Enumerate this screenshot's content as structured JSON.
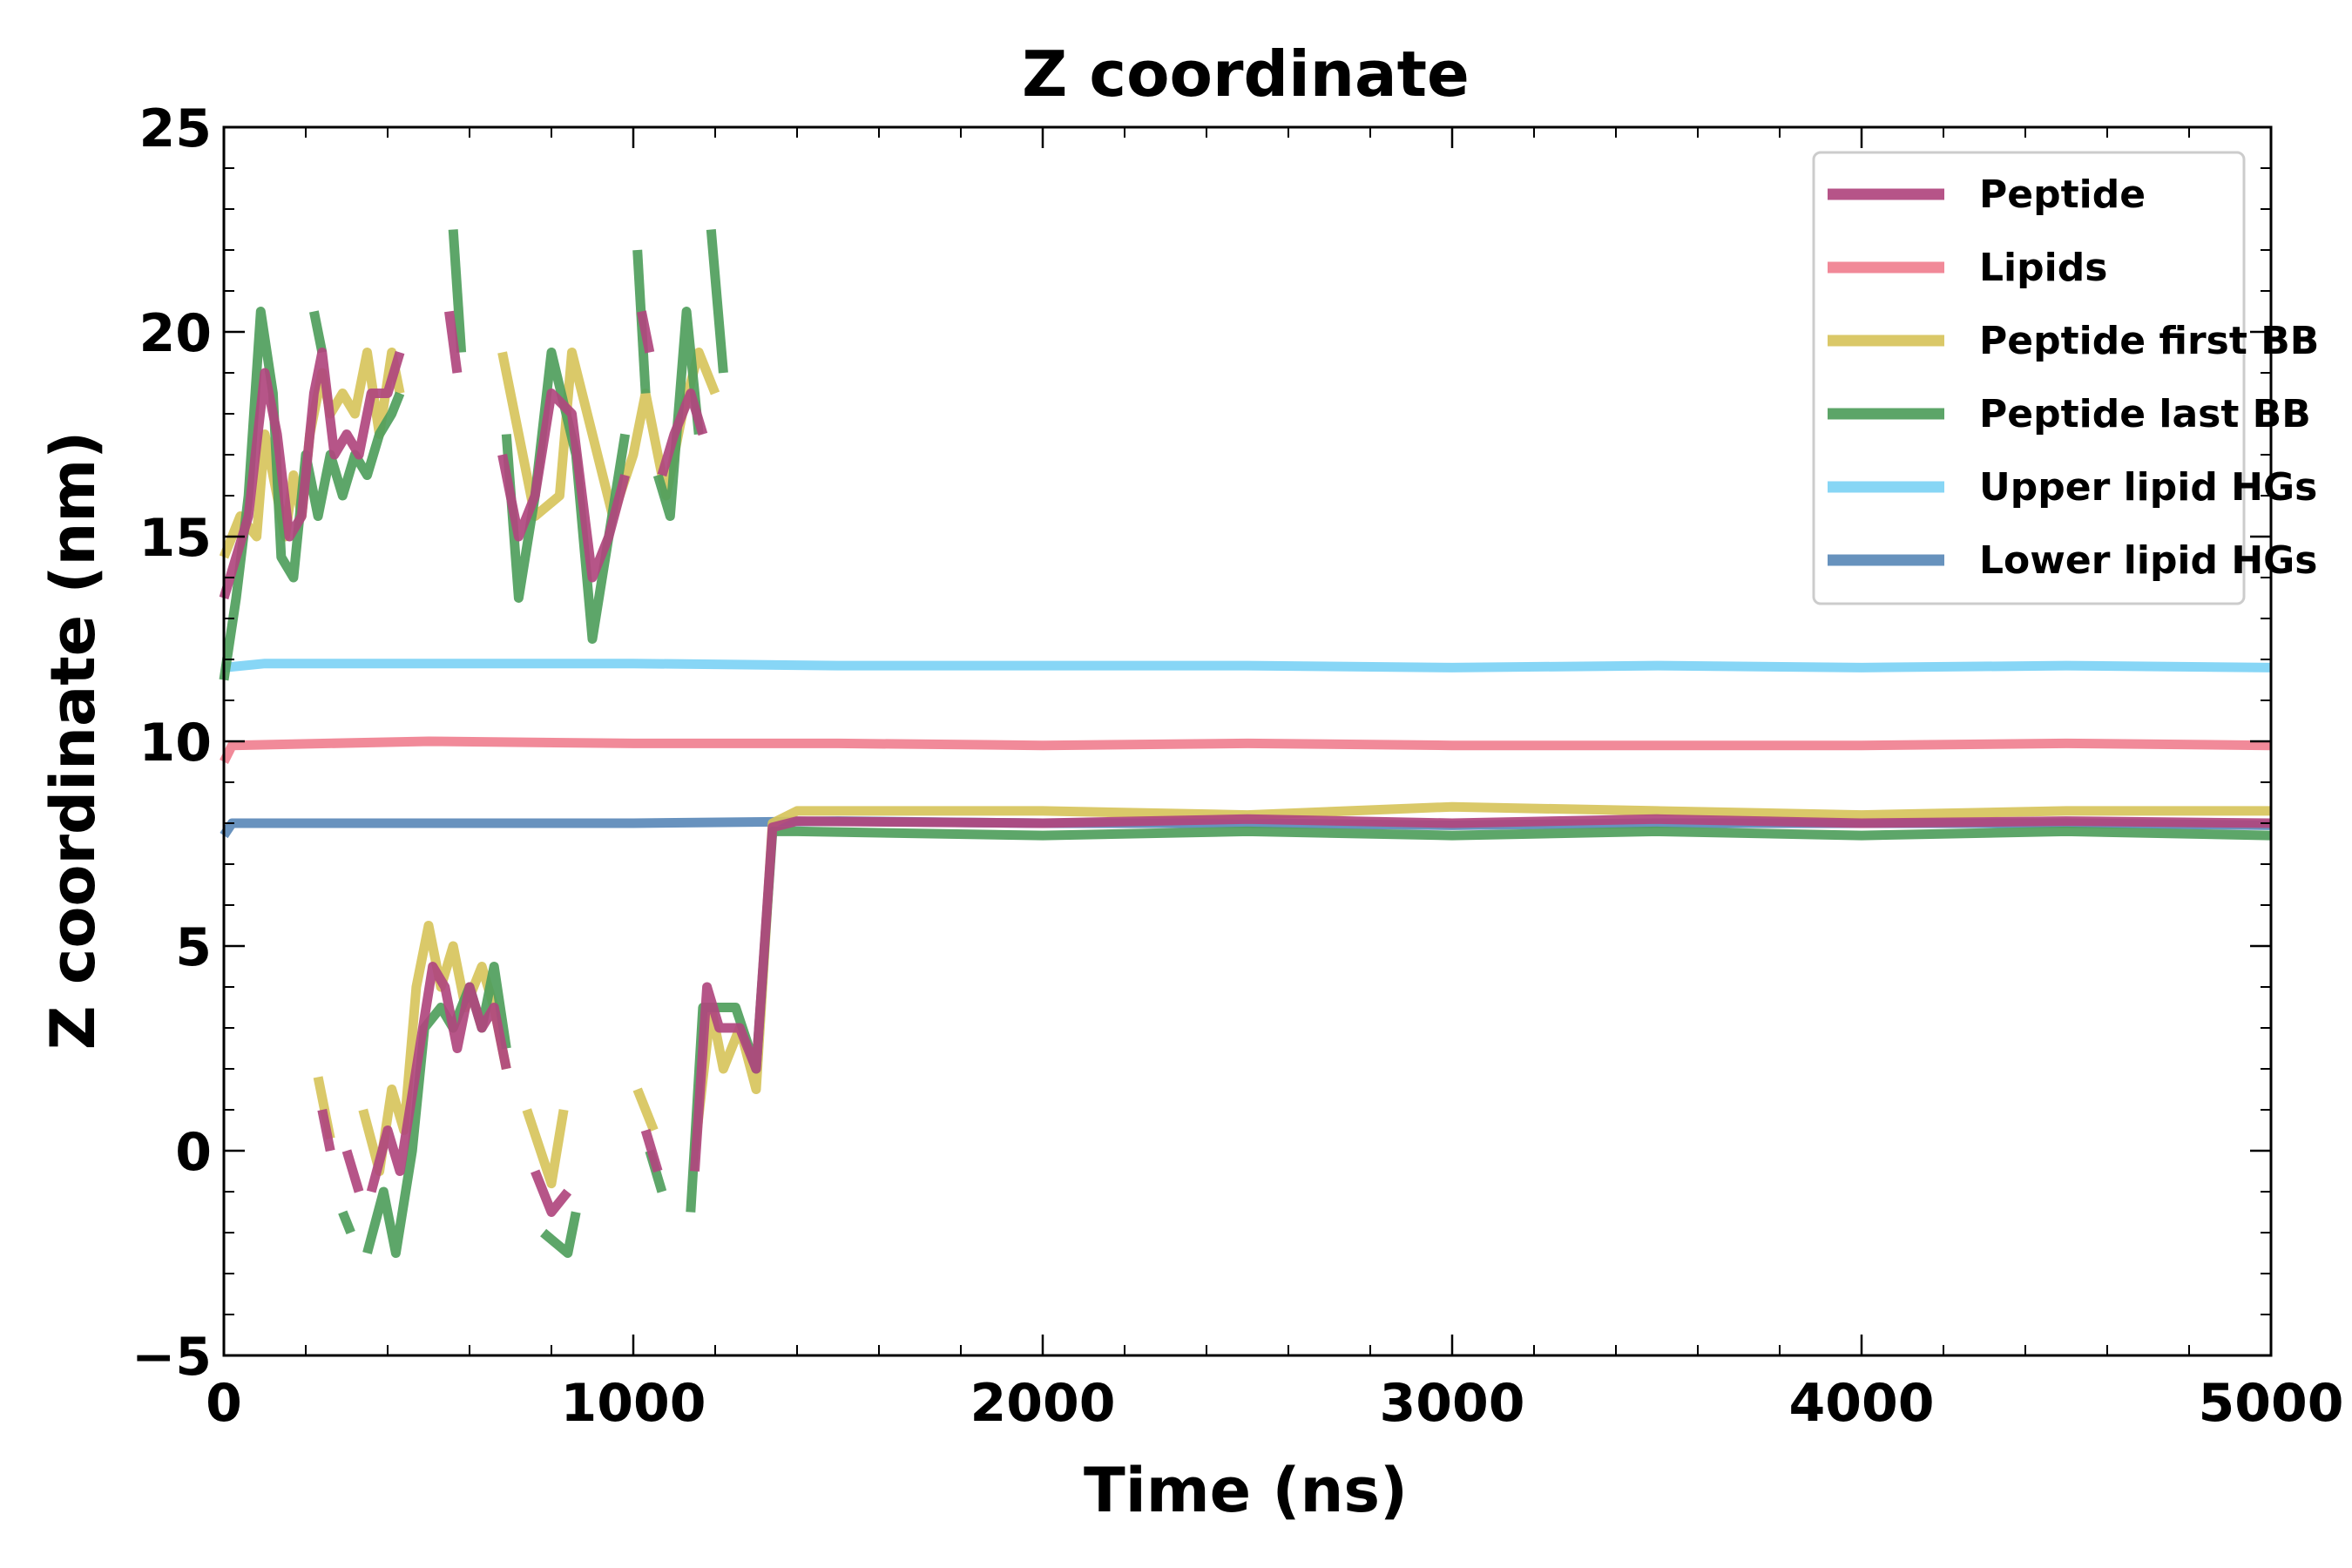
{
  "chart_data": {
    "type": "line",
    "title": "Z coordinate",
    "xlabel": "Time (ns)",
    "ylabel": "Z coordinate (nm)",
    "xlim": [
      0,
      5000
    ],
    "ylim": [
      -5,
      25
    ],
    "x_ticks": [
      "0",
      "1000",
      "2000",
      "3000",
      "4000",
      "5000"
    ],
    "y_ticks": [
      "−5",
      "0",
      "5",
      "10",
      "15",
      "20",
      "25"
    ],
    "grid": false,
    "legend_position": "top-right",
    "series": [
      {
        "name": "Upper lipid HGs",
        "color": "#7dd3f5",
        "segments": [
          [
            [
              0,
              11.8
            ],
            [
              100,
              11.9
            ],
            [
              500,
              11.9
            ],
            [
              1000,
              11.9
            ],
            [
              1500,
              11.85
            ],
            [
              2000,
              11.85
            ],
            [
              2500,
              11.85
            ],
            [
              3000,
              11.8
            ],
            [
              3500,
              11.85
            ],
            [
              4000,
              11.8
            ],
            [
              4500,
              11.85
            ],
            [
              5000,
              11.8
            ]
          ]
        ]
      },
      {
        "name": "Lipids",
        "color": "#f08090",
        "segments": [
          [
            [
              0,
              9.5
            ],
            [
              20,
              9.9
            ],
            [
              500,
              10.0
            ],
            [
              1000,
              9.95
            ],
            [
              1500,
              9.95
            ],
            [
              2000,
              9.9
            ],
            [
              2500,
              9.95
            ],
            [
              3000,
              9.9
            ],
            [
              3500,
              9.9
            ],
            [
              4000,
              9.9
            ],
            [
              4500,
              9.95
            ],
            [
              5000,
              9.9
            ]
          ]
        ]
      },
      {
        "name": "Lower lipid HGs",
        "color": "#5b89b8",
        "segments": [
          [
            [
              0,
              7.7
            ],
            [
              20,
              8.0
            ],
            [
              500,
              8.0
            ],
            [
              1000,
              8.0
            ],
            [
              1500,
              8.05
            ],
            [
              2000,
              8.0
            ],
            [
              2500,
              8.0
            ],
            [
              3000,
              7.95
            ],
            [
              3500,
              8.0
            ],
            [
              4000,
              8.0
            ],
            [
              4500,
              8.0
            ],
            [
              5000,
              7.95
            ]
          ]
        ]
      },
      {
        "name": "Peptide first BB",
        "color": "#d7c45c",
        "segments": [
          [
            [
              0,
              14.5
            ],
            [
              40,
              15.5
            ],
            [
              80,
              15.0
            ],
            [
              100,
              17.5
            ],
            [
              120,
              16.5
            ],
            [
              150,
              15.0
            ],
            [
              170,
              16.5
            ],
            [
              190,
              15.5
            ],
            [
              210,
              17.5
            ],
            [
              240,
              19.0
            ],
            [
              260,
              18.0
            ],
            [
              290,
              18.5
            ],
            [
              320,
              18.0
            ],
            [
              350,
              19.5
            ],
            [
              380,
              17.5
            ],
            [
              410,
              19.5
            ],
            [
              430,
              18.5
            ]
          ],
          [
            [
              230,
              1.8
            ],
            [
              260,
              0.3
            ]
          ],
          [
            [
              340,
              1.0
            ],
            [
              380,
              -0.5
            ],
            [
              410,
              1.5
            ],
            [
              440,
              0.5
            ],
            [
              470,
              4.0
            ],
            [
              500,
              5.5
            ],
            [
              530,
              4.0
            ],
            [
              560,
              5.0
            ],
            [
              590,
              3.5
            ],
            [
              630,
              4.5
            ],
            [
              660,
              3.5
            ],
            [
              690,
              2.0
            ]
          ],
          [
            [
              740,
              1.0
            ],
            [
              800,
              -0.8
            ],
            [
              830,
              1.0
            ]
          ],
          [
            [
              1010,
              1.5
            ],
            [
              1050,
              0.5
            ]
          ],
          [
            [
              1150,
              0.0
            ],
            [
              1190,
              3.5
            ],
            [
              1220,
              2.0
            ],
            [
              1260,
              3.0
            ],
            [
              1300,
              1.5
            ],
            [
              1340,
              8.0
            ],
            [
              1400,
              8.3
            ],
            [
              2000,
              8.3
            ],
            [
              2500,
              8.2
            ],
            [
              3000,
              8.4
            ],
            [
              3500,
              8.3
            ],
            [
              4000,
              8.2
            ],
            [
              4500,
              8.3
            ],
            [
              5000,
              8.3
            ]
          ],
          [
            [
              680,
              19.5
            ],
            [
              720,
              17.5
            ],
            [
              760,
              15.5
            ],
            [
              820,
              16.0
            ],
            [
              850,
              19.5
            ],
            [
              900,
              17.5
            ],
            [
              950,
              15.5
            ],
            [
              1000,
              17.0
            ],
            [
              1030,
              18.5
            ],
            [
              1080,
              16.0
            ],
            [
              1120,
              18.0
            ],
            [
              1160,
              19.5
            ],
            [
              1200,
              18.5
            ]
          ]
        ]
      },
      {
        "name": "Peptide last BB",
        "color": "#4f9e5c",
        "segments": [
          [
            [
              0,
              11.5
            ],
            [
              30,
              13.5
            ],
            [
              60,
              16.0
            ],
            [
              90,
              20.5
            ],
            [
              120,
              18.5
            ],
            [
              140,
              14.5
            ],
            [
              170,
              14.0
            ],
            [
              200,
              17.0
            ],
            [
              230,
              15.5
            ],
            [
              260,
              17.0
            ],
            [
              290,
              16.0
            ],
            [
              320,
              17.0
            ],
            [
              350,
              16.5
            ],
            [
              380,
              17.5
            ],
            [
              410,
              18.0
            ],
            [
              430,
              18.5
            ]
          ],
          [
            [
              220,
              20.5
            ],
            [
              240,
              19.5
            ]
          ],
          [
            [
              290,
              -1.5
            ],
            [
              310,
              -2.0
            ]
          ],
          [
            [
              350,
              -2.5
            ],
            [
              390,
              -1.0
            ],
            [
              420,
              -2.5
            ],
            [
              460,
              0.0
            ],
            [
              490,
              3.0
            ],
            [
              530,
              3.5
            ],
            [
              560,
              3.0
            ],
            [
              600,
              4.0
            ],
            [
              630,
              3.0
            ],
            [
              660,
              4.5
            ],
            [
              690,
              2.5
            ]
          ],
          [
            [
              560,
              22.5
            ],
            [
              580,
              19.5
            ]
          ],
          [
            [
              690,
              17.5
            ],
            [
              720,
              13.5
            ],
            [
              760,
              16.0
            ],
            [
              800,
              19.5
            ],
            [
              860,
              17.0
            ],
            [
              900,
              12.5
            ],
            [
              940,
              15.0
            ],
            [
              980,
              17.5
            ]
          ],
          [
            [
              780,
              -2.0
            ],
            [
              840,
              -2.5
            ],
            [
              860,
              -1.5
            ]
          ],
          [
            [
              1010,
              22.0
            ],
            [
              1030,
              18.5
            ]
          ],
          [
            [
              1040,
              0.0
            ],
            [
              1070,
              -1.0
            ]
          ],
          [
            [
              1060,
              16.5
            ],
            [
              1090,
              15.5
            ],
            [
              1130,
              20.5
            ],
            [
              1160,
              17.5
            ]
          ],
          [
            [
              1140,
              -1.5
            ],
            [
              1170,
              3.5
            ],
            [
              1210,
              3.5
            ],
            [
              1250,
              3.5
            ],
            [
              1300,
              2.0
            ],
            [
              1340,
              7.8
            ],
            [
              1400,
              7.8
            ],
            [
              2000,
              7.7
            ],
            [
              2500,
              7.8
            ],
            [
              3000,
              7.7
            ],
            [
              3500,
              7.8
            ],
            [
              4000,
              7.7
            ],
            [
              4500,
              7.8
            ],
            [
              5000,
              7.7
            ]
          ],
          [
            [
              1190,
              22.5
            ],
            [
              1220,
              19.0
            ]
          ]
        ]
      },
      {
        "name": "Peptide",
        "color": "#b0467e",
        "segments": [
          [
            [
              0,
              13.5
            ],
            [
              30,
              14.5
            ],
            [
              60,
              15.5
            ],
            [
              100,
              19.0
            ],
            [
              130,
              17.5
            ],
            [
              160,
              15.0
            ],
            [
              190,
              15.5
            ],
            [
              220,
              18.5
            ],
            [
              240,
              19.5
            ],
            [
              270,
              17.0
            ],
            [
              300,
              17.5
            ],
            [
              330,
              17.0
            ],
            [
              360,
              18.5
            ],
            [
              400,
              18.5
            ],
            [
              430,
              19.5
            ]
          ],
          [
            [
              240,
              1.0
            ],
            [
              260,
              0.0
            ]
          ],
          [
            [
              300,
              0.0
            ],
            [
              330,
              -1.0
            ]
          ],
          [
            [
              360,
              -1.0
            ],
            [
              400,
              0.5
            ],
            [
              430,
              -0.5
            ],
            [
              470,
              2.0
            ],
            [
              510,
              4.5
            ],
            [
              540,
              4.0
            ],
            [
              570,
              2.5
            ],
            [
              600,
              4.0
            ],
            [
              630,
              3.0
            ],
            [
              660,
              3.5
            ],
            [
              690,
              2.0
            ]
          ],
          [
            [
              550,
              20.5
            ],
            [
              570,
              19.0
            ]
          ],
          [
            [
              680,
              17.0
            ],
            [
              720,
              15.0
            ],
            [
              760,
              16.0
            ],
            [
              800,
              18.5
            ],
            [
              850,
              18.0
            ],
            [
              900,
              14.0
            ],
            [
              940,
              15.0
            ],
            [
              980,
              16.5
            ]
          ],
          [
            [
              760,
              -0.5
            ],
            [
              800,
              -1.5
            ],
            [
              840,
              -1.0
            ]
          ],
          [
            [
              1020,
              20.5
            ],
            [
              1040,
              19.5
            ]
          ],
          [
            [
              1030,
              0.5
            ],
            [
              1060,
              -0.5
            ]
          ],
          [
            [
              1070,
              16.5
            ],
            [
              1100,
              17.5
            ],
            [
              1140,
              18.5
            ],
            [
              1170,
              17.5
            ]
          ],
          [
            [
              1150,
              -0.5
            ],
            [
              1180,
              4.0
            ],
            [
              1210,
              3.0
            ],
            [
              1260,
              3.0
            ],
            [
              1300,
              2.0
            ],
            [
              1340,
              7.9
            ],
            [
              1400,
              8.05
            ],
            [
              2000,
              8.0
            ],
            [
              2500,
              8.1
            ],
            [
              3000,
              8.0
            ],
            [
              3500,
              8.1
            ],
            [
              4000,
              8.0
            ],
            [
              4500,
              8.05
            ],
            [
              5000,
              8.0
            ]
          ]
        ]
      }
    ],
    "legend_order": [
      "Peptide",
      "Lipids",
      "Peptide first BB",
      "Peptide last BB",
      "Upper lipid HGs",
      "Lower lipid HGs"
    ]
  }
}
